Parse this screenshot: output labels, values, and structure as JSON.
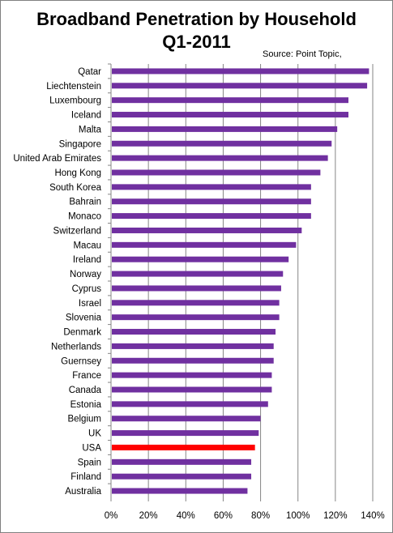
{
  "chart_data": {
    "type": "bar",
    "orientation": "horizontal",
    "title_line1": "Broadband Penetration by Household",
    "title_line2": "Q1-2011",
    "source": "Source: Point Topic,",
    "categories": [
      "Qatar",
      "Liechtenstein",
      "Luxembourg",
      "Iceland",
      "Malta",
      "Singapore",
      "United Arab Emirates",
      "Hong Kong",
      "South Korea",
      "Bahrain",
      "Monaco",
      "Switzerland",
      "Macau",
      "Ireland",
      "Norway",
      "Cyprus",
      "Israel",
      "Slovenia",
      "Denmark",
      "Netherlands",
      "Guernsey",
      "France",
      "Canada",
      "Estonia",
      "Belgium",
      "UK",
      "USA",
      "Spain",
      "Finland",
      "Australia"
    ],
    "values": [
      138,
      137,
      127,
      127,
      121,
      118,
      116,
      112,
      107,
      107,
      107,
      102,
      99,
      95,
      92,
      91,
      90,
      90,
      88,
      87,
      87,
      86,
      86,
      84,
      80,
      79,
      77,
      75,
      75,
      73
    ],
    "highlight": "USA",
    "xlim": [
      0,
      140
    ],
    "xticks": [
      "0%",
      "20%",
      "40%",
      "60%",
      "80%",
      "100%",
      "120%",
      "140%"
    ],
    "grid": true,
    "colors": {
      "bar": "#7030a0",
      "highlight": "#ff0000",
      "grid": "#868686"
    }
  }
}
